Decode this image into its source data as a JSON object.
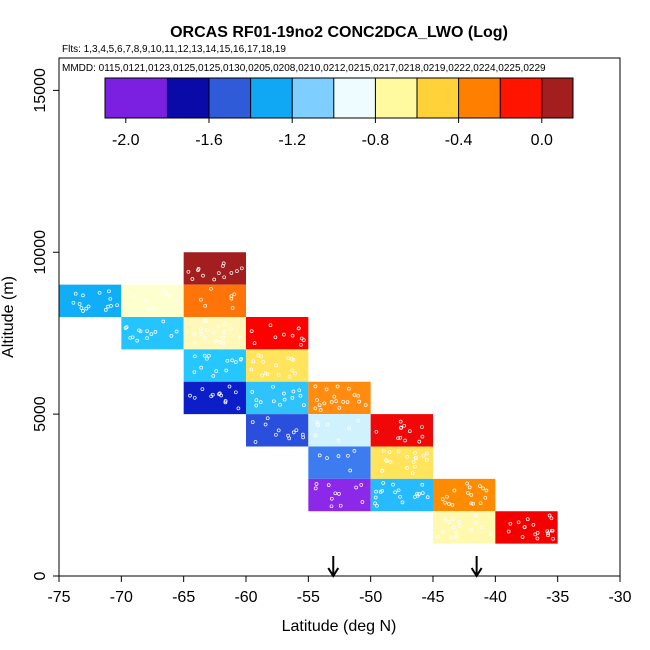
{
  "chart_data": {
    "type": "heatmap",
    "title": "ORCAS RF01-19no2 CONC2DCA_LWO (Log)",
    "flights_label": "Flts: 1,3,4,5,6,7,8,9,10,11,12,13,14,15,16,17,18,19",
    "mmdd_label": "MMDD: 0115,0121,0123,0125,0125,0130,0205,0208,0210,0212,0215,0217,0218,0219,0222,0224,0225,0229",
    "xlabel": "Latitude (deg N)",
    "ylabel": "Altitude (m)",
    "xlim": [
      -75,
      -30
    ],
    "ylim": [
      0,
      16000
    ],
    "xticks": [
      -75,
      -70,
      -65,
      -60,
      -55,
      -50,
      -45,
      -40,
      -35,
      -30
    ],
    "yticks": [
      0,
      5000,
      10000,
      15000
    ],
    "colorbar": {
      "range": [
        -2.1,
        0.15
      ],
      "ticks": [
        -2.0,
        -1.6,
        -1.2,
        -0.8,
        -0.4,
        0.0
      ],
      "tick_labels": [
        "-2.0",
        "-1.6",
        "-1.2",
        "-0.8",
        "-0.4",
        "0.0"
      ],
      "bins": [
        {
          "from": -2.1,
          "to": -1.8,
          "color": "#7b1fe0"
        },
        {
          "from": -1.8,
          "to": -1.6,
          "color": "#0a0aa8"
        },
        {
          "from": -1.6,
          "to": -1.4,
          "color": "#2f5ad8"
        },
        {
          "from": -1.4,
          "to": -1.2,
          "color": "#10a8f5"
        },
        {
          "from": -1.2,
          "to": -1.0,
          "color": "#7ecfff"
        },
        {
          "from": -1.0,
          "to": -0.8,
          "color": "#eefcff"
        },
        {
          "from": -0.8,
          "to": -0.6,
          "color": "#fff9a0"
        },
        {
          "from": -0.6,
          "to": -0.4,
          "color": "#ffd23a"
        },
        {
          "from": -0.4,
          "to": -0.2,
          "color": "#ff7f00"
        },
        {
          "from": -0.2,
          "to": 0.0,
          "color": "#ff1400"
        },
        {
          "from": 0.0,
          "to": 0.15,
          "color": "#a31e1e"
        }
      ]
    },
    "cells": [
      {
        "lat": [
          -75,
          -70
        ],
        "alt": [
          8000,
          9000
        ],
        "value": -1.3,
        "color": "#10aef7"
      },
      {
        "lat": [
          -70,
          -65
        ],
        "alt": [
          8000,
          9000
        ],
        "value": -0.75,
        "color": "#feffce"
      },
      {
        "lat": [
          -70,
          -65
        ],
        "alt": [
          7000,
          8000
        ],
        "value": -1.35,
        "color": "#25c4ff"
      },
      {
        "lat": [
          -65,
          -60
        ],
        "alt": [
          9000,
          10000
        ],
        "value": 0.1,
        "color": "#a31e1e"
      },
      {
        "lat": [
          -65,
          -60
        ],
        "alt": [
          8000,
          9000
        ],
        "value": -0.35,
        "color": "#ff7408"
      },
      {
        "lat": [
          -65,
          -60
        ],
        "alt": [
          7000,
          8000
        ],
        "value": -0.7,
        "color": "#fff8b8"
      },
      {
        "lat": [
          -65,
          -60
        ],
        "alt": [
          6000,
          7000
        ],
        "value": -1.3,
        "color": "#26c6ff"
      },
      {
        "lat": [
          -65,
          -60
        ],
        "alt": [
          5000,
          6000
        ],
        "value": -1.75,
        "color": "#0c1ec8"
      },
      {
        "lat": [
          -60,
          -55
        ],
        "alt": [
          7000,
          8000
        ],
        "value": -0.1,
        "color": "#ff0000"
      },
      {
        "lat": [
          -60,
          -55
        ],
        "alt": [
          6000,
          7000
        ],
        "value": -0.6,
        "color": "#ffe45c"
      },
      {
        "lat": [
          -60,
          -55
        ],
        "alt": [
          5000,
          6000
        ],
        "value": -1.25,
        "color": "#30c3fb"
      },
      {
        "lat": [
          -60,
          -55
        ],
        "alt": [
          4000,
          5000
        ],
        "value": -1.6,
        "color": "#2a4fdc"
      },
      {
        "lat": [
          -55,
          -50
        ],
        "alt": [
          5000,
          6000
        ],
        "value": -0.4,
        "color": "#ff8c10"
      },
      {
        "lat": [
          -55,
          -50
        ],
        "alt": [
          4000,
          5000
        ],
        "value": -0.95,
        "color": "#d0f2ff"
      },
      {
        "lat": [
          -55,
          -50
        ],
        "alt": [
          3000,
          4000
        ],
        "value": -1.45,
        "color": "#3c7cf0"
      },
      {
        "lat": [
          -55,
          -50
        ],
        "alt": [
          2000,
          3000
        ],
        "value": -1.9,
        "color": "#8c28e8"
      },
      {
        "lat": [
          -50,
          -45
        ],
        "alt": [
          4000,
          5000
        ],
        "value": -0.1,
        "color": "#f00808"
      },
      {
        "lat": [
          -50,
          -45
        ],
        "alt": [
          3000,
          4000
        ],
        "value": -0.6,
        "color": "#ffe45c"
      },
      {
        "lat": [
          -50,
          -45
        ],
        "alt": [
          2000,
          3000
        ],
        "value": -1.3,
        "color": "#26bbff"
      },
      {
        "lat": [
          -45,
          -40
        ],
        "alt": [
          2000,
          3000
        ],
        "value": -0.4,
        "color": "#ff8c00"
      },
      {
        "lat": [
          -45,
          -40
        ],
        "alt": [
          1000,
          2000
        ],
        "value": -0.7,
        "color": "#fff9b0"
      },
      {
        "lat": [
          -40,
          -35
        ],
        "alt": [
          1000,
          2000
        ],
        "value": -0.1,
        "color": "#f40000"
      }
    ],
    "markers": [
      {
        "lat": -53,
        "label": "arrow"
      },
      {
        "lat": -41.5,
        "label": "arrow"
      }
    ]
  }
}
